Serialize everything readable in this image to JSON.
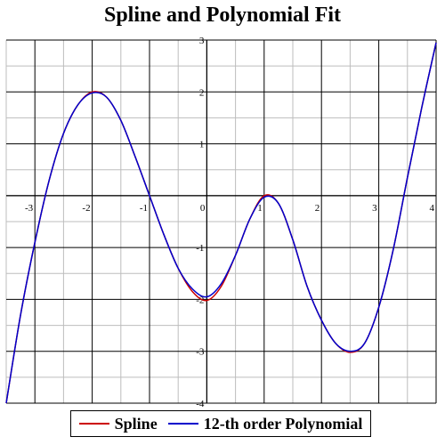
{
  "chart_data": {
    "type": "line",
    "title": "Spline and Polynomial Fit",
    "xlim": [
      -3.5,
      4
    ],
    "ylim": [
      -4,
      3
    ],
    "x_ticks": [
      -3,
      -2,
      -1,
      0,
      1,
      2,
      3,
      4
    ],
    "y_ticks": [
      -4,
      -3,
      -2,
      -1,
      1,
      2,
      3
    ],
    "x_tick_labels": [
      "-3",
      "-2",
      "-1",
      "0",
      "1",
      "2",
      "3",
      "4"
    ],
    "y_tick_labels": [
      "-4",
      "-3",
      "-2",
      "-1",
      "1",
      "2",
      "3"
    ],
    "grid": true,
    "legend_position": "bottom-center",
    "series": [
      {
        "name": "Spline",
        "color": "#cc0000",
        "points": [
          [
            -3.5,
            -4.0
          ],
          [
            -3.25,
            -2.3
          ],
          [
            -3.0,
            -0.9
          ],
          [
            -2.75,
            0.3
          ],
          [
            -2.5,
            1.2
          ],
          [
            -2.25,
            1.75
          ],
          [
            -2.0,
            2.0
          ],
          [
            -1.75,
            1.9
          ],
          [
            -1.5,
            1.45
          ],
          [
            -1.25,
            0.75
          ],
          [
            -1.0,
            0.0
          ],
          [
            -0.75,
            -0.75
          ],
          [
            -0.5,
            -1.4
          ],
          [
            -0.25,
            -1.85
          ],
          [
            0.0,
            -2.02
          ],
          [
            0.25,
            -1.75
          ],
          [
            0.5,
            -1.15
          ],
          [
            0.75,
            -0.45
          ],
          [
            1.0,
            0.0
          ],
          [
            1.25,
            -0.15
          ],
          [
            1.5,
            -0.85
          ],
          [
            1.75,
            -1.75
          ],
          [
            2.0,
            -2.4
          ],
          [
            2.25,
            -2.85
          ],
          [
            2.5,
            -3.02
          ],
          [
            2.75,
            -2.85
          ],
          [
            3.0,
            -2.15
          ],
          [
            3.25,
            -1.05
          ],
          [
            3.5,
            0.35
          ],
          [
            3.75,
            1.7
          ],
          [
            4.0,
            2.95
          ]
        ]
      },
      {
        "name": "12-th order Polynomial",
        "color": "#0000cc",
        "points": [
          [
            -3.5,
            -4.0
          ],
          [
            -3.25,
            -2.3
          ],
          [
            -3.0,
            -0.9
          ],
          [
            -2.75,
            0.3
          ],
          [
            -2.5,
            1.2
          ],
          [
            -2.25,
            1.75
          ],
          [
            -2.0,
            1.98
          ],
          [
            -1.75,
            1.9
          ],
          [
            -1.5,
            1.45
          ],
          [
            -1.25,
            0.75
          ],
          [
            -1.0,
            0.0
          ],
          [
            -0.75,
            -0.75
          ],
          [
            -0.5,
            -1.4
          ],
          [
            -0.25,
            -1.8
          ],
          [
            0.0,
            -1.95
          ],
          [
            0.25,
            -1.7
          ],
          [
            0.5,
            -1.15
          ],
          [
            0.75,
            -0.45
          ],
          [
            1.0,
            -0.03
          ],
          [
            1.25,
            -0.15
          ],
          [
            1.5,
            -0.85
          ],
          [
            1.75,
            -1.75
          ],
          [
            2.0,
            -2.4
          ],
          [
            2.25,
            -2.85
          ],
          [
            2.5,
            -3.0
          ],
          [
            2.75,
            -2.85
          ],
          [
            3.0,
            -2.15
          ],
          [
            3.25,
            -1.05
          ],
          [
            3.5,
            0.35
          ],
          [
            3.75,
            1.7
          ],
          [
            4.0,
            2.95
          ]
        ]
      }
    ]
  }
}
